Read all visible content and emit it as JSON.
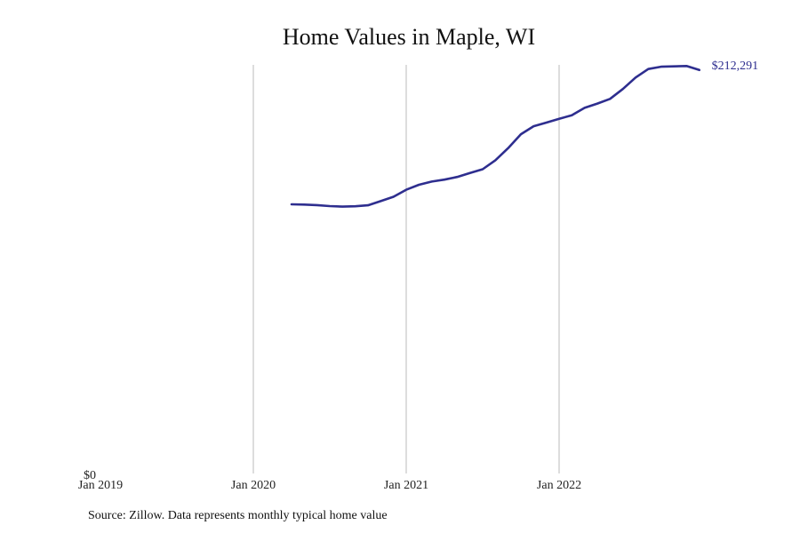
{
  "chart_data": {
    "type": "line",
    "title": "Home Values in Maple, WI",
    "xlabel": "",
    "ylabel": "",
    "x_ticks": [
      {
        "date": "2019-01",
        "label": "Jan 2019"
      },
      {
        "date": "2020-01",
        "label": "Jan 2020"
      },
      {
        "date": "2021-01",
        "label": "Jan 2021"
      },
      {
        "date": "2022-01",
        "label": "Jan 2022"
      }
    ],
    "xlim": [
      "2019-01",
      "2023-01"
    ],
    "y_ticks": [
      {
        "value": 0,
        "label": "$0"
      }
    ],
    "ylim": [
      0,
      215000
    ],
    "grid": "vertical lines at year ticks",
    "line_color": "#2e2e8f",
    "grid_color": "#bbbbbb",
    "end_label": "$212,291",
    "series": [
      {
        "x": [
          "2020-04",
          "2020-05",
          "2020-06",
          "2020-07",
          "2020-08",
          "2020-09",
          "2020-10",
          "2020-11",
          "2020-12",
          "2021-01",
          "2021-02",
          "2021-03",
          "2021-04",
          "2021-05",
          "2021-06",
          "2021-07",
          "2021-08",
          "2021-09",
          "2021-10",
          "2021-11",
          "2021-12",
          "2022-01",
          "2022-02",
          "2022-03",
          "2022-04",
          "2022-05",
          "2022-06",
          "2022-07",
          "2022-08",
          "2022-09",
          "2022-10",
          "2022-11",
          "2022-12"
        ],
        "values": [
          141600,
          141500,
          141200,
          140700,
          140400,
          140600,
          141100,
          143300,
          145600,
          149300,
          151900,
          153600,
          154600,
          156000,
          158100,
          160100,
          164800,
          171200,
          178500,
          182700,
          184600,
          186600,
          188500,
          192400,
          194600,
          197100,
          202300,
          208300,
          212800,
          214000,
          214200,
          214400,
          212291
        ]
      }
    ]
  },
  "footer": {
    "source": "Source: Zillow. Data represents monthly typical home value"
  }
}
